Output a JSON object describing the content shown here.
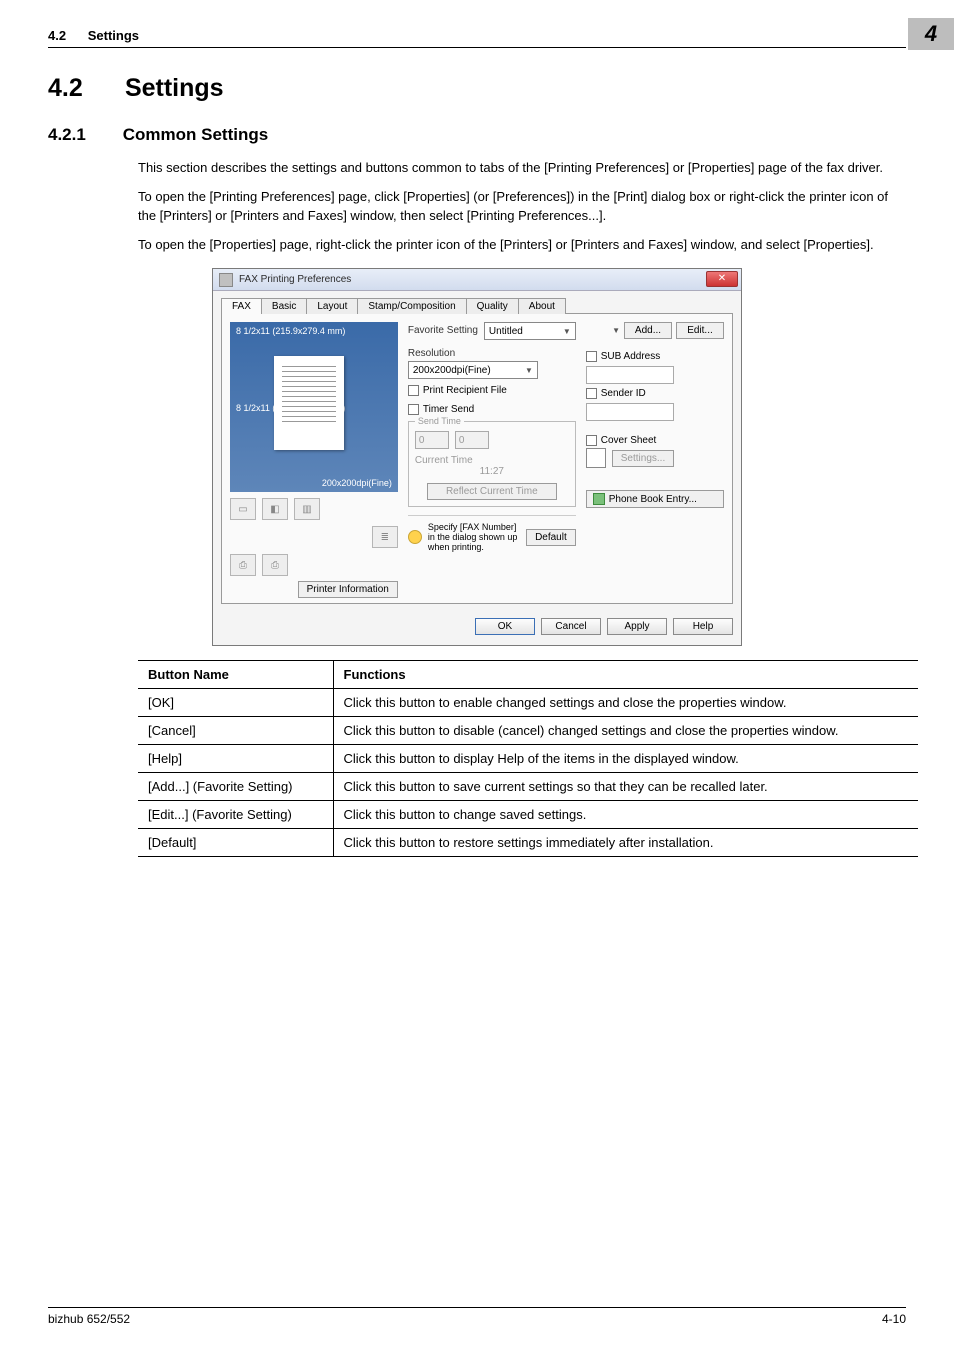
{
  "running_head": {
    "section_num": "4.2",
    "section_name": "Settings"
  },
  "chapter_marker": "4",
  "h1": {
    "num": "4.2",
    "title": "Settings"
  },
  "h2": {
    "num": "4.2.1",
    "title": "Common Settings"
  },
  "paragraphs": [
    "This section describes the settings and buttons common to tabs of the [Printing Preferences] or [Properties] page of the fax driver.",
    "To open the [Printing Preferences] page, click [Properties] (or [Preferences]) in the [Print] dialog box or right-click the printer icon of the [Printers] or [Printers and Faxes] window, then select [Printing Preferences...].",
    "To open the [Properties] page, right-click the printer icon of the [Printers] or [Printers and Faxes] window, and select [Properties]."
  ],
  "dialog": {
    "title": "FAX Printing Preferences",
    "tabs": [
      "FAX",
      "Basic",
      "Layout",
      "Stamp/Composition",
      "Quality",
      "About"
    ],
    "active_tab_index": 0,
    "preview": {
      "size_top": "8 1/2x11 (215.9x279.4 mm)",
      "size_bottom": "8 1/2x11 (215.9x279.4 mm)",
      "resolution_badge": "200x200dpi(Fine)"
    },
    "printer_info_btn": "Printer Information",
    "favorite": {
      "label": "Favorite Setting",
      "value": "Untitled",
      "add_btn": "Add...",
      "edit_btn": "Edit..."
    },
    "resolution": {
      "label": "Resolution",
      "value": "200x200dpi(Fine)"
    },
    "print_recipient_file": "Print Recipient File",
    "timer_send": {
      "label": "Timer Send",
      "send_time_label": "Send Time",
      "hh": "0",
      "mm": "0",
      "current_time_label": "Current Time",
      "current_time_value": "11:27",
      "reflect_btn": "Reflect Current Time"
    },
    "sub_address": {
      "label": "SUB Address"
    },
    "sender_id": {
      "label": "Sender ID"
    },
    "cover_sheet": {
      "label": "Cover Sheet",
      "settings_btn": "Settings..."
    },
    "phone_book_btn": "Phone Book Entry...",
    "hint": "Specify [FAX Number] in the dialog shown up when printing.",
    "default_btn": "Default",
    "buttons": {
      "ok": "OK",
      "cancel": "Cancel",
      "apply": "Apply",
      "help": "Help"
    }
  },
  "table": {
    "headers": [
      "Button Name",
      "Functions"
    ],
    "rows": [
      [
        "[OK]",
        "Click this button to enable changed settings and close the properties window."
      ],
      [
        "[Cancel]",
        "Click this button to disable (cancel) changed settings and close the properties window."
      ],
      [
        "[Help]",
        "Click this button to display Help of the items in the displayed window."
      ],
      [
        "[Add...] (Favorite Setting)",
        "Click this button to save current settings so that they can be recalled later."
      ],
      [
        "[Edit...] (Favorite Setting)",
        "Click this button to change saved settings."
      ],
      [
        "[Default]",
        "Click this button to restore settings immediately after installation."
      ]
    ]
  },
  "footer": {
    "left": "bizhub 652/552",
    "right": "4-10"
  }
}
